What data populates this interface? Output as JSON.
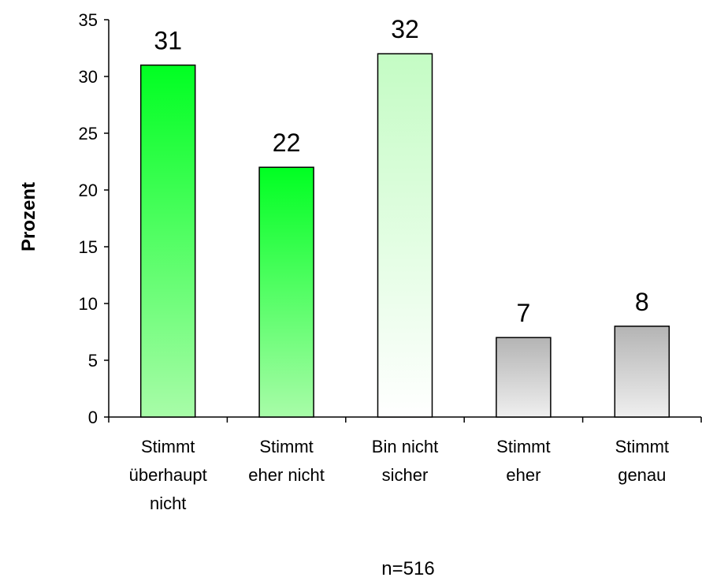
{
  "chart_data": {
    "type": "bar",
    "categories": [
      [
        "Stimmt",
        "überhaupt",
        "nicht"
      ],
      [
        "Stimmt",
        "eher nicht"
      ],
      [
        "Bin nicht",
        "sicher"
      ],
      [
        "Stimmt",
        "eher"
      ],
      [
        "Stimmt",
        "genau"
      ]
    ],
    "values": [
      31,
      22,
      32,
      7,
      8
    ],
    "data_labels": [
      "31",
      "22",
      "32",
      "7",
      "8"
    ],
    "ylabel": "Prozent",
    "ylim": [
      0,
      35
    ],
    "yticks": [
      "0",
      "5",
      "10",
      "15",
      "20",
      "25",
      "30",
      "35"
    ],
    "note": "n=516",
    "grid": false,
    "bar_colors": [
      {
        "top": "#00ff22",
        "bottom": "#a8fca8"
      },
      {
        "top": "#00ff22",
        "bottom": "#a8fca8"
      },
      {
        "top": "#c4fcc4",
        "bottom": "#ffffff"
      },
      {
        "top": "#b4b4b4",
        "bottom": "#efefef"
      },
      {
        "top": "#b4b4b4",
        "bottom": "#efefef"
      }
    ]
  }
}
